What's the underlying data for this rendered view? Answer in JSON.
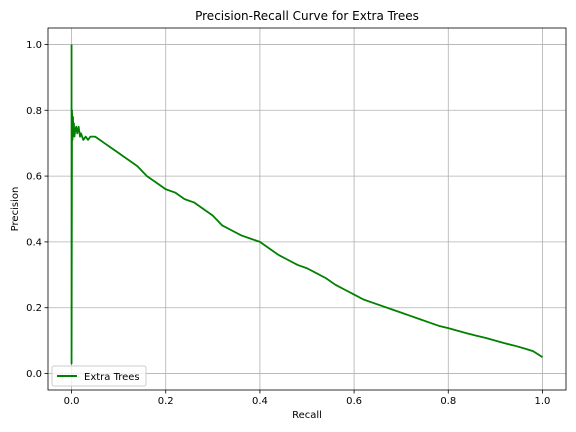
{
  "chart_data": {
    "type": "line",
    "title": "Precision-Recall Curve for Extra Trees",
    "xlabel": "Recall",
    "ylabel": "Precision",
    "xlim": [
      -0.05,
      1.05
    ],
    "ylim": [
      -0.05,
      1.05
    ],
    "xticks": [
      0.0,
      0.2,
      0.4,
      0.6,
      0.8,
      1.0
    ],
    "yticks": [
      0.0,
      0.2,
      0.4,
      0.6,
      0.8,
      1.0
    ],
    "xtick_labels": [
      "0.0",
      "0.2",
      "0.4",
      "0.6",
      "0.8",
      "1.0"
    ],
    "ytick_labels": [
      "0.0",
      "0.2",
      "0.4",
      "0.6",
      "0.8",
      "1.0"
    ],
    "grid": true,
    "legend_position": "lower-left",
    "series": [
      {
        "name": "Extra Trees",
        "color": "#008000",
        "x": [
          0.0,
          0.0,
          0.001,
          0.002,
          0.003,
          0.004,
          0.005,
          0.006,
          0.008,
          0.01,
          0.012,
          0.015,
          0.018,
          0.02,
          0.025,
          0.03,
          0.035,
          0.04,
          0.05,
          0.06,
          0.07,
          0.08,
          0.09,
          0.1,
          0.11,
          0.12,
          0.14,
          0.16,
          0.18,
          0.2,
          0.22,
          0.24,
          0.26,
          0.28,
          0.3,
          0.32,
          0.34,
          0.36,
          0.38,
          0.4,
          0.42,
          0.44,
          0.46,
          0.48,
          0.5,
          0.52,
          0.54,
          0.56,
          0.58,
          0.6,
          0.62,
          0.64,
          0.66,
          0.68,
          0.7,
          0.72,
          0.74,
          0.76,
          0.78,
          0.8,
          0.82,
          0.84,
          0.86,
          0.88,
          0.9,
          0.92,
          0.94,
          0.96,
          0.98,
          1.0
        ],
        "y": [
          1.0,
          0.03,
          0.8,
          0.71,
          0.78,
          0.73,
          0.76,
          0.72,
          0.74,
          0.75,
          0.73,
          0.75,
          0.72,
          0.73,
          0.71,
          0.72,
          0.71,
          0.72,
          0.72,
          0.71,
          0.7,
          0.69,
          0.68,
          0.67,
          0.66,
          0.65,
          0.63,
          0.6,
          0.58,
          0.56,
          0.55,
          0.53,
          0.52,
          0.5,
          0.48,
          0.45,
          0.435,
          0.42,
          0.41,
          0.4,
          0.38,
          0.36,
          0.345,
          0.33,
          0.32,
          0.305,
          0.29,
          0.27,
          0.255,
          0.24,
          0.225,
          0.215,
          0.205,
          0.195,
          0.185,
          0.175,
          0.165,
          0.155,
          0.145,
          0.138,
          0.13,
          0.122,
          0.115,
          0.108,
          0.1,
          0.092,
          0.085,
          0.077,
          0.068,
          0.05
        ]
      }
    ]
  }
}
